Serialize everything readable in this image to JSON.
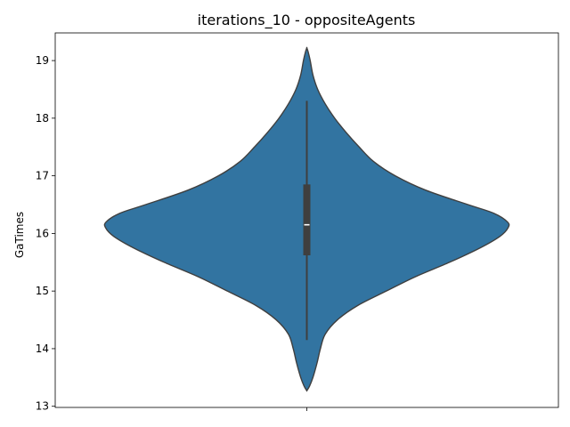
{
  "chart_data": {
    "type": "violin",
    "title": "iterations_10 - oppositeAgents",
    "xlabel": "",
    "ylabel": "GaTimes",
    "ylim": [
      12.98,
      19.48
    ],
    "yticks": [
      13,
      14,
      15,
      16,
      17,
      18,
      19
    ],
    "grid": false,
    "legend": "none",
    "color": "#3274a1",
    "edge_color": "#3f3f3f",
    "violin": {
      "density_profile": [
        [
          13.27,
          0.0
        ],
        [
          13.35,
          0.04
        ],
        [
          13.5,
          0.09
        ],
        [
          13.75,
          0.15
        ],
        [
          14.0,
          0.2
        ],
        [
          14.25,
          0.27
        ],
        [
          14.5,
          0.45
        ],
        [
          14.75,
          0.75
        ],
        [
          15.0,
          1.17
        ],
        [
          15.25,
          1.6
        ],
        [
          15.5,
          2.1
        ],
        [
          15.75,
          2.55
        ],
        [
          15.95,
          2.84
        ],
        [
          16.1,
          2.96
        ],
        [
          16.2,
          2.95
        ],
        [
          16.35,
          2.75
        ],
        [
          16.5,
          2.37
        ],
        [
          16.75,
          1.75
        ],
        [
          17.0,
          1.3
        ],
        [
          17.25,
          0.98
        ],
        [
          17.5,
          0.77
        ],
        [
          17.75,
          0.58
        ],
        [
          18.0,
          0.41
        ],
        [
          18.25,
          0.27
        ],
        [
          18.5,
          0.16
        ],
        [
          18.75,
          0.09
        ],
        [
          19.0,
          0.05
        ],
        [
          19.15,
          0.02
        ],
        [
          19.22,
          0.0
        ]
      ],
      "whisker_low": 14.15,
      "whisker_high": 18.3,
      "q1": 15.62,
      "median": 16.15,
      "q3": 16.85
    }
  }
}
